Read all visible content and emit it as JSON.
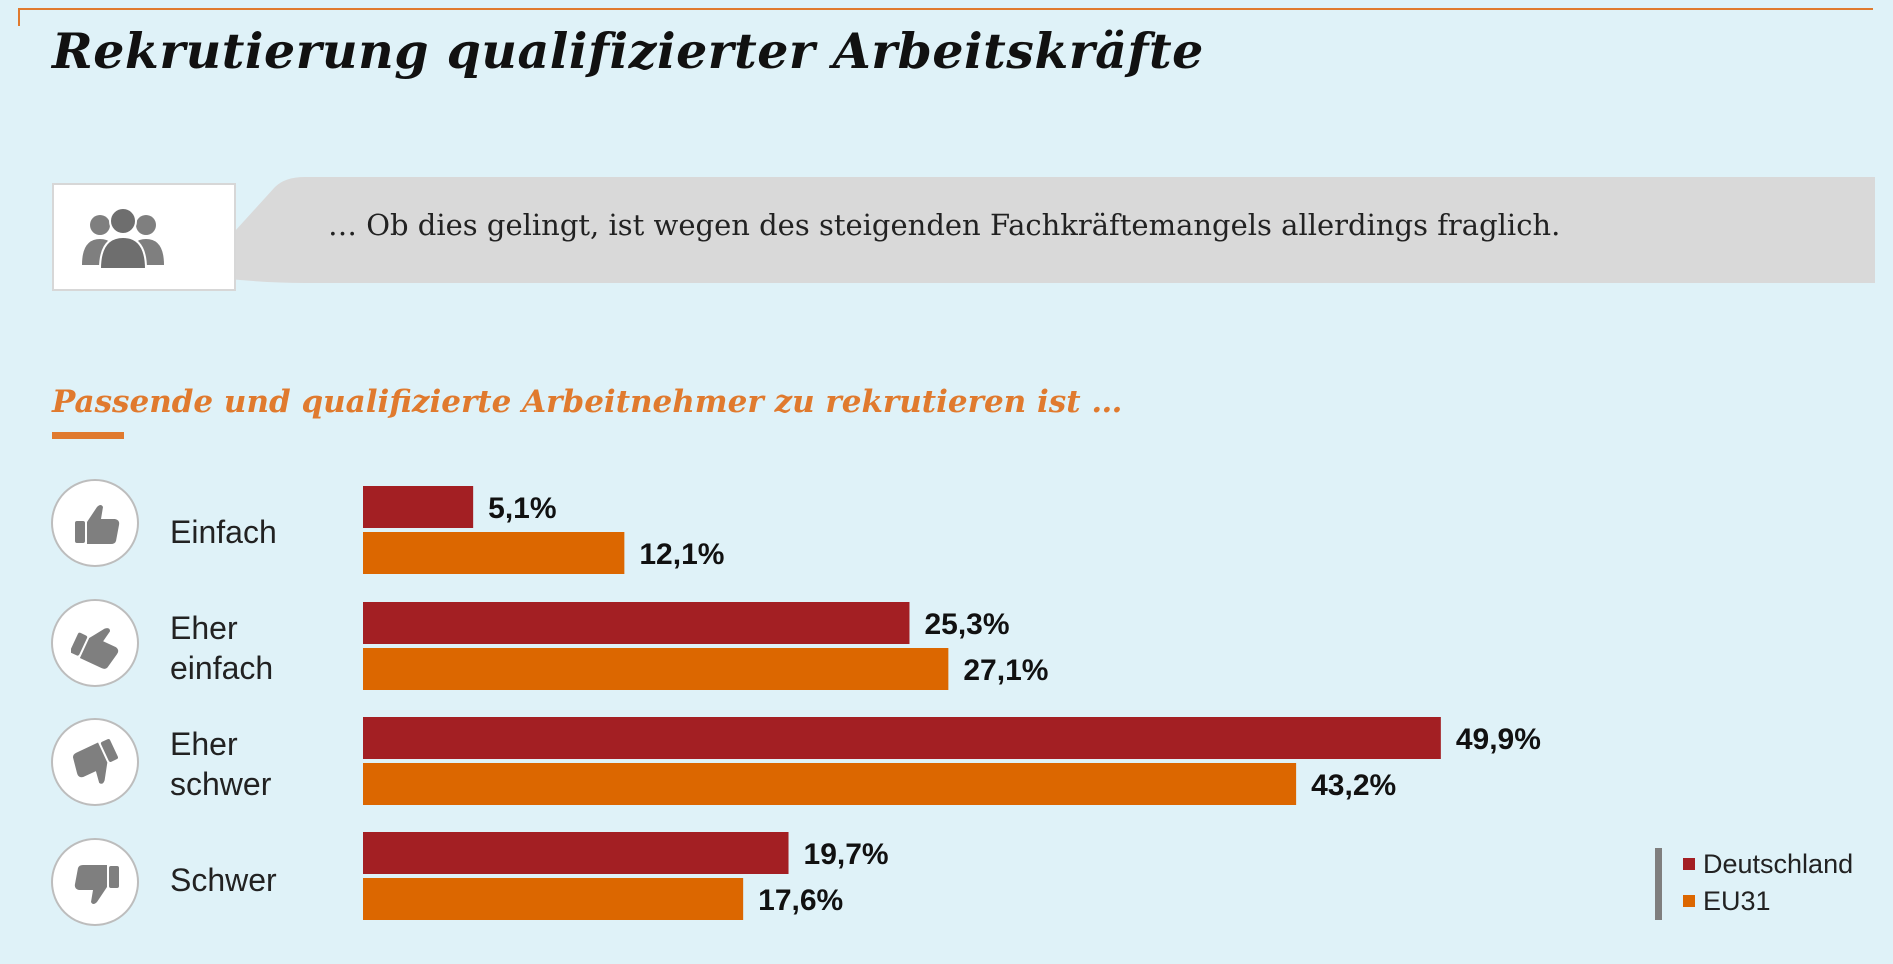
{
  "title": "Rekrutierung qualifizierter Arbeitskräfte",
  "quote": "… Ob dies gelingt, ist wegen des steigenden Fachkräftemangels allerdings fraglich.",
  "colors": {
    "background": "#dff2f8",
    "accent": "#e07a2e",
    "deutschland": "#a31f23",
    "eu31": "#dc6700"
  },
  "icons": {
    "quote": "people-group-icon",
    "rows": [
      "thumbs-up-icon",
      "thumbs-up-tilted-icon",
      "thumbs-down-tilted-icon",
      "thumbs-down-icon"
    ]
  },
  "chart_data": {
    "type": "bar",
    "orientation": "horizontal",
    "title": "Passende und qualifizierte Arbeitnehmer zu rekrutieren ist …",
    "categories": [
      "Einfach",
      "Eher einfach",
      "Eher schwer",
      "Schwer"
    ],
    "category_lines": [
      [
        "Einfach"
      ],
      [
        "Eher",
        "einfach"
      ],
      [
        "Eher",
        "schwer"
      ],
      [
        "Schwer"
      ]
    ],
    "series": [
      {
        "name": "Deutschland",
        "values": [
          5.1,
          25.3,
          49.9,
          19.7
        ],
        "labels": [
          "5,1%",
          "25,3%",
          "49,9%",
          "19,7%"
        ],
        "color": "#a31f23"
      },
      {
        "name": "EU31",
        "values": [
          12.1,
          27.1,
          43.2,
          17.6
        ],
        "labels": [
          "12,1%",
          "27,1%",
          "43,2%",
          "17,6%"
        ],
        "color": "#dc6700"
      }
    ],
    "xlim": [
      0,
      60
    ],
    "grid": false,
    "legend": "bottom-right"
  }
}
